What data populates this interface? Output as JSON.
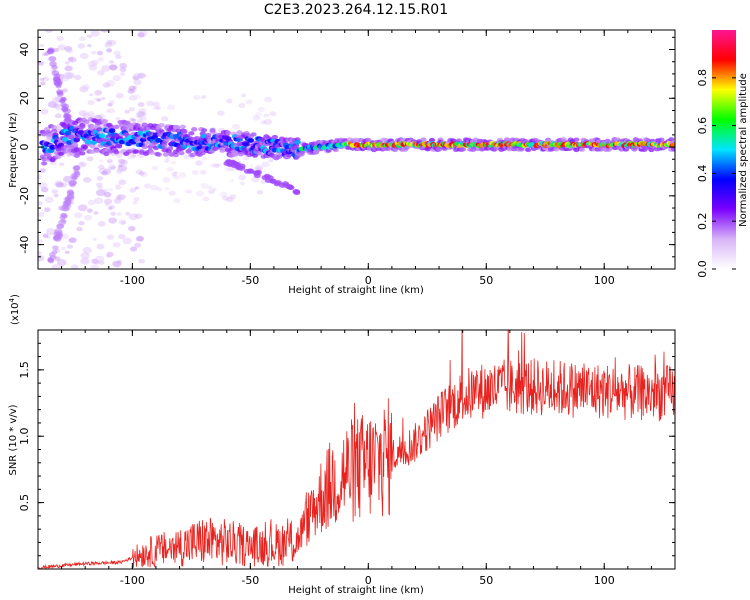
{
  "title": "C2E3.2023.264.12.15.R01",
  "chart_data": [
    {
      "type": "heatmap",
      "xlabel": "Height of straight line (km)",
      "ylabel": "Frequency (Hz)",
      "xlim": [
        -140,
        130
      ],
      "ylim": [
        -50,
        48
      ],
      "xticks": [
        -100,
        -50,
        0,
        50,
        100
      ],
      "yticks": [
        -40,
        -20,
        0,
        20,
        40
      ],
      "colorbar": {
        "label": "Normalized spectral amplitude",
        "range": [
          0,
          1
        ],
        "ticks": [
          0.0,
          0.2,
          0.4,
          0.6,
          0.8
        ],
        "colormap": [
          "#ffffff",
          "#d8b4f8",
          "#7a00ff",
          "#0000ff",
          "#00e5ff",
          "#00ff00",
          "#ffff00",
          "#ff0000",
          "#ff1493"
        ]
      },
      "ridge": [
        {
          "x": -130,
          "f": 5
        },
        {
          "x": -110,
          "f": 4
        },
        {
          "x": -90,
          "f": 3
        },
        {
          "x": -70,
          "f": 2
        },
        {
          "x": -50,
          "f": 1
        },
        {
          "x": -30,
          "f": -1
        },
        {
          "x": -10,
          "f": 1
        },
        {
          "x": 10,
          "f": 1
        },
        {
          "x": 50,
          "f": 1
        },
        {
          "x": 100,
          "f": 1
        },
        {
          "x": 130,
          "f": 1
        }
      ]
    },
    {
      "type": "line",
      "xlabel": "Height of straight line (km)",
      "ylabel": "SNR (10 * v/v)",
      "multiplier": "(x10",
      "multiplier_exp": "4",
      "multiplier_close": ")",
      "xlim": [
        -140,
        130
      ],
      "ylim": [
        0,
        18000
      ],
      "xticks": [
        -100,
        -50,
        0,
        50,
        100
      ],
      "yticks": [
        5000,
        10000,
        15000
      ],
      "ytick_labels": [
        "0.5",
        "1.0",
        "1.5"
      ],
      "color": "#e8221e",
      "x": [
        -140,
        -120,
        -105,
        -95,
        -80,
        -70,
        -60,
        -50,
        -40,
        -30,
        -25,
        -20,
        -15,
        -10,
        -5,
        0,
        10,
        20,
        30,
        40,
        50,
        60,
        70,
        80,
        90,
        100,
        110,
        120,
        130
      ],
      "y": [
        100,
        400,
        500,
        1200,
        1700,
        2100,
        2000,
        1700,
        1800,
        2200,
        4000,
        5500,
        6500,
        7200,
        7500,
        7800,
        8500,
        9500,
        11500,
        13000,
        13500,
        13700,
        13700,
        13600,
        13500,
        13400,
        13300,
        13200,
        13300
      ]
    }
  ]
}
